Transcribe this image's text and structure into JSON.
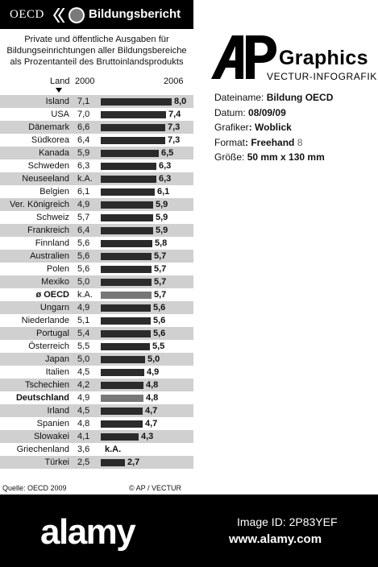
{
  "header": {
    "org_name": "OECD",
    "title": "Bildungsbericht"
  },
  "subtitle": [
    "Private und öffentliche Ausgaben für",
    "Bildungseinrichtungen aller Bildungsbereiche",
    "als Prozentanteil des Bruttoinlandsprodukts"
  ],
  "chart_data": {
    "type": "bar",
    "orientation": "horizontal",
    "title": "Bildungsbericht",
    "subtitle": "Private und öffentliche Ausgaben für Bildungseinrichtungen aller Bildungsbereiche als Prozentanteil des Bruttoinlandsprodukts",
    "column_headers": {
      "category": "Land",
      "value_2000": "2000",
      "value_2006": "2006"
    },
    "xlim": [
      0,
      8
    ],
    "grid": false,
    "bar_color": "#2b2b2b",
    "highlight_color": "#777777",
    "row_shade_color": "#d0d0d0",
    "rows": [
      {
        "country": "Island",
        "v2000": "7,1",
        "v2006": 8.0,
        "label2006": "8,0"
      },
      {
        "country": "USA",
        "v2000": "7,0",
        "v2006": 7.4,
        "label2006": "7,4"
      },
      {
        "country": "Dänemark",
        "v2000": "6,6",
        "v2006": 7.3,
        "label2006": "7,3"
      },
      {
        "country": "Südkorea",
        "v2000": "6,4",
        "v2006": 7.3,
        "label2006": "7,3"
      },
      {
        "country": "Kanada",
        "v2000": "5,9",
        "v2006": 6.5,
        "label2006": "6,5"
      },
      {
        "country": "Schweden",
        "v2000": "6,3",
        "v2006": 6.3,
        "label2006": "6,3"
      },
      {
        "country": "Neuseeland",
        "v2000": "k.A.",
        "v2006": 6.3,
        "label2006": "6,3"
      },
      {
        "country": "Belgien",
        "v2000": "6,1",
        "v2006": 6.1,
        "label2006": "6,1"
      },
      {
        "country": "Ver. Königreich",
        "v2000": "4,9",
        "v2006": 5.9,
        "label2006": "5,9"
      },
      {
        "country": "Schweiz",
        "v2000": "5,7",
        "v2006": 5.9,
        "label2006": "5,9"
      },
      {
        "country": "Frankreich",
        "v2000": "6,4",
        "v2006": 5.9,
        "label2006": "5,9"
      },
      {
        "country": "Finnland",
        "v2000": "5,6",
        "v2006": 5.8,
        "label2006": "5,8"
      },
      {
        "country": "Australien",
        "v2000": "5,6",
        "v2006": 5.7,
        "label2006": "5,7"
      },
      {
        "country": "Polen",
        "v2000": "5,6",
        "v2006": 5.7,
        "label2006": "5,7"
      },
      {
        "country": "Mexiko",
        "v2000": "5,0",
        "v2006": 5.7,
        "label2006": "5,7"
      },
      {
        "country": "ø OECD",
        "v2000": "k.A.",
        "v2006": 5.7,
        "label2006": "5,7",
        "highlight": true
      },
      {
        "country": "Ungarn",
        "v2000": "4,9",
        "v2006": 5.6,
        "label2006": "5,6"
      },
      {
        "country": "Niederlande",
        "v2000": "5,1",
        "v2006": 5.6,
        "label2006": "5,6"
      },
      {
        "country": "Portugal",
        "v2000": "5,4",
        "v2006": 5.6,
        "label2006": "5,6"
      },
      {
        "country": "Österreich",
        "v2000": "5,5",
        "v2006": 5.5,
        "label2006": "5,5"
      },
      {
        "country": "Japan",
        "v2000": "5,0",
        "v2006": 5.0,
        "label2006": "5,0"
      },
      {
        "country": "Italien",
        "v2000": "4,5",
        "v2006": 4.9,
        "label2006": "4,9"
      },
      {
        "country": "Tschechien",
        "v2000": "4,2",
        "v2006": 4.8,
        "label2006": "4,8"
      },
      {
        "country": "Deutschland",
        "v2000": "4,9",
        "v2006": 4.8,
        "label2006": "4,8",
        "highlight": true
      },
      {
        "country": "Irland",
        "v2000": "4,5",
        "v2006": 4.7,
        "label2006": "4,7"
      },
      {
        "country": "Spanien",
        "v2000": "4,8",
        "v2006": 4.7,
        "label2006": "4,7"
      },
      {
        "country": "Slowakei",
        "v2000": "4,1",
        "v2006": 4.3,
        "label2006": "4,3"
      },
      {
        "country": "Griechenland",
        "v2000": "3,6",
        "v2006": null,
        "label2006": "k.A."
      },
      {
        "country": "Türkei",
        "v2000": "2,5",
        "v2006": 2.7,
        "label2006": "2,7"
      }
    ]
  },
  "footer": {
    "source": "Quelle: OECD 2009",
    "copyright": "© AP / VECTUR"
  },
  "ap_logo": {
    "mark": "AP",
    "graphics": "Graphics",
    "vectur": "VECTUR-INFOGRAFIK"
  },
  "meta": {
    "dateiname_label": "Dateiname:",
    "dateiname": "Bildung OECD",
    "datum_label": "Datum:",
    "datum": "08/09/09",
    "grafiker_label": "Grafiker",
    "grafiker": ": Woblick",
    "format_label": "Format",
    "format": ": Freehand",
    "format_version": "8",
    "groesse_label": "Größe:",
    "groesse": "50 mm x 130 mm"
  },
  "banner": {
    "logo": "alamy",
    "image_id": "Image ID: 2P83YEF",
    "url": "www.alamy.com"
  }
}
